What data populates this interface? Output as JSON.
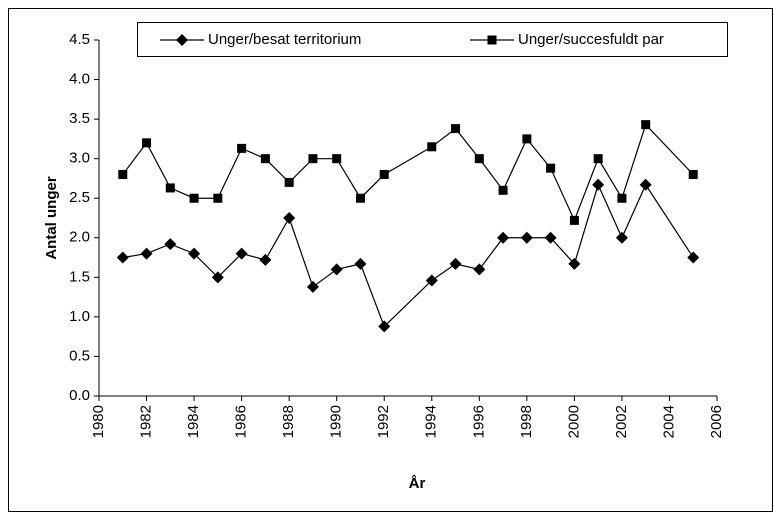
{
  "chart_data": {
    "type": "line",
    "x_label": "År",
    "y_label": "Antal unger",
    "xlim": [
      1980,
      2006
    ],
    "xticks": [
      1980,
      1982,
      1984,
      1986,
      1988,
      1990,
      1992,
      1994,
      1996,
      1998,
      2000,
      2002,
      2004,
      2006
    ],
    "ylim": [
      0,
      4.5
    ],
    "yticks": [
      {
        "value": 0,
        "label": "0.0"
      },
      0.5,
      {
        "value": 1,
        "label": "1.0"
      },
      1.5,
      {
        "value": 2,
        "label": "2.0"
      },
      2.5,
      {
        "value": 3,
        "label": "3.0"
      },
      3.5,
      {
        "value": 4,
        "label": "4.0"
      },
      4.5
    ],
    "grid": false,
    "legend": "top",
    "series": [
      {
        "name": "Unger/besat territorium",
        "color": "#000000",
        "marker": "diamond",
        "x": [
          1981,
          1982,
          1983,
          1984,
          1985,
          1986,
          1987,
          1988,
          1989,
          1990,
          1991,
          1992,
          1994,
          1995,
          1996,
          1997,
          1998,
          1999,
          2000,
          2001,
          2002,
          2003,
          2005
        ],
        "values": [
          1.75,
          1.8,
          1.92,
          1.8,
          1.5,
          1.8,
          1.72,
          2.25,
          1.38,
          1.6,
          1.67,
          0.88,
          1.46,
          1.67,
          1.6,
          2.0,
          2.0,
          2.0,
          1.67,
          2.67,
          2.0,
          2.67,
          1.75
        ]
      },
      {
        "name": "Unger/succesfuldt par",
        "color": "#000000",
        "marker": "square",
        "x": [
          1981,
          1982,
          1983,
          1984,
          1985,
          1986,
          1987,
          1988,
          1989,
          1990,
          1991,
          1992,
          1994,
          1995,
          1996,
          1997,
          1998,
          1999,
          2000,
          2001,
          2002,
          2003,
          2005
        ],
        "values": [
          2.8,
          3.2,
          2.63,
          2.5,
          2.5,
          3.13,
          3.0,
          2.7,
          3.0,
          3.0,
          2.5,
          2.8,
          3.15,
          3.38,
          3.0,
          2.6,
          3.25,
          2.88,
          2.22,
          3.0,
          2.5,
          3.43,
          2.8
        ]
      }
    ]
  }
}
